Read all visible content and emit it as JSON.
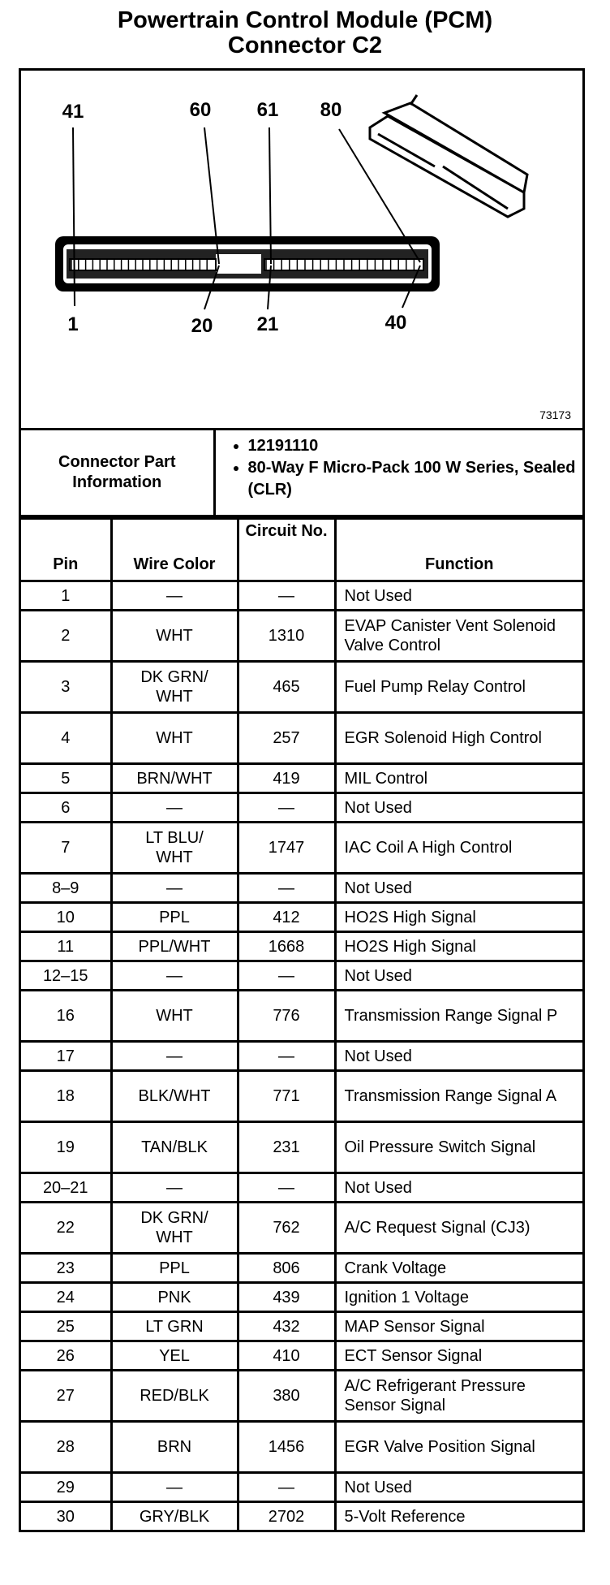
{
  "title_line1": "Powertrain Control Module (PCM)",
  "title_line2": "Connector C2",
  "diagram": {
    "pin_labels_top": [
      "41",
      "60",
      "61",
      "80"
    ],
    "pin_labels_bottom": [
      "1",
      "20",
      "21",
      "40"
    ],
    "figure_number": "73173"
  },
  "part_info": {
    "label": "Connector Part Information",
    "items": [
      "12191110",
      "80-Way F Micro-Pack 100 W Series, Sealed (CLR)"
    ]
  },
  "columns": [
    "Pin",
    "Wire Color",
    "Circuit No.",
    "Function"
  ],
  "rows": [
    {
      "pin": "1",
      "color": "—",
      "circuit": "—",
      "function": "Not Used",
      "h": "s"
    },
    {
      "pin": "2",
      "color": "WHT",
      "circuit": "1310",
      "function": "EVAP Canister Vent Solenoid Valve Control",
      "h": "d"
    },
    {
      "pin": "3",
      "color": "DK GRN/ WHT",
      "circuit": "465",
      "function": "Fuel Pump Relay Control",
      "h": "d"
    },
    {
      "pin": "4",
      "color": "WHT",
      "circuit": "257",
      "function": "EGR Solenoid High Control",
      "h": "d"
    },
    {
      "pin": "5",
      "color": "BRN/WHT",
      "circuit": "419",
      "function": "MIL Control",
      "h": "s"
    },
    {
      "pin": "6",
      "color": "—",
      "circuit": "—",
      "function": "Not Used",
      "h": "s"
    },
    {
      "pin": "7",
      "color": "LT BLU/ WHT",
      "circuit": "1747",
      "function": "IAC Coil A High Control",
      "h": "d"
    },
    {
      "pin": "8–9",
      "color": "—",
      "circuit": "—",
      "function": "Not Used",
      "h": "s"
    },
    {
      "pin": "10",
      "color": "PPL",
      "circuit": "412",
      "function": "HO2S High Signal",
      "h": "s"
    },
    {
      "pin": "11",
      "color": "PPL/WHT",
      "circuit": "1668",
      "function": "HO2S High Signal",
      "h": "s"
    },
    {
      "pin": "12–15",
      "color": "—",
      "circuit": "—",
      "function": "Not Used",
      "h": "s"
    },
    {
      "pin": "16",
      "color": "WHT",
      "circuit": "776",
      "function": "Transmission Range Signal P",
      "h": "d"
    },
    {
      "pin": "17",
      "color": "—",
      "circuit": "—",
      "function": "Not Used",
      "h": "s"
    },
    {
      "pin": "18",
      "color": "BLK/WHT",
      "circuit": "771",
      "function": "Transmission Range Signal A",
      "h": "d"
    },
    {
      "pin": "19",
      "color": "TAN/BLK",
      "circuit": "231",
      "function": "Oil Pressure Switch Signal",
      "h": "d"
    },
    {
      "pin": "20–21",
      "color": "—",
      "circuit": "—",
      "function": "Not Used",
      "h": "s"
    },
    {
      "pin": "22",
      "color": "DK GRN/ WHT",
      "circuit": "762",
      "function": "A/C Request Signal (CJ3)",
      "h": "d"
    },
    {
      "pin": "23",
      "color": "PPL",
      "circuit": "806",
      "function": "Crank Voltage",
      "h": "s"
    },
    {
      "pin": "24",
      "color": "PNK",
      "circuit": "439",
      "function": "Ignition 1 Voltage",
      "h": "s"
    },
    {
      "pin": "25",
      "color": "LT GRN",
      "circuit": "432",
      "function": "MAP Sensor Signal",
      "h": "s"
    },
    {
      "pin": "26",
      "color": "YEL",
      "circuit": "410",
      "function": "ECT Sensor Signal",
      "h": "s"
    },
    {
      "pin": "27",
      "color": "RED/BLK",
      "circuit": "380",
      "function": "A/C Refrigerant Pressure Sensor Signal",
      "h": "d"
    },
    {
      "pin": "28",
      "color": "BRN",
      "circuit": "1456",
      "function": "EGR Valve Position Signal",
      "h": "d"
    },
    {
      "pin": "29",
      "color": "—",
      "circuit": "—",
      "function": "Not Used",
      "h": "s"
    },
    {
      "pin": "30",
      "color": "GRY/BLK",
      "circuit": "2702",
      "function": "5-Volt Reference",
      "h": "s"
    }
  ]
}
